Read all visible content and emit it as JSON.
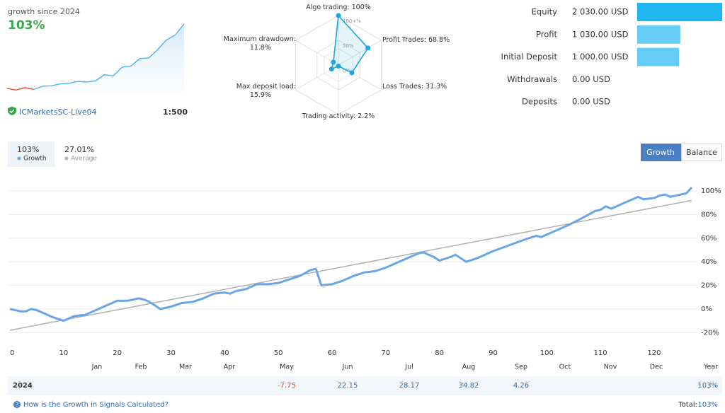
{
  "account": {
    "name": "ICMarketsSC-Live04",
    "leverage": "1:500"
  },
  "chart_data": [
    {
      "type": "sparkline",
      "title": "growth since 2024",
      "subtitle": "103%",
      "x": [
        0,
        1,
        2,
        3,
        4,
        5,
        6,
        7,
        8,
        9,
        10,
        11,
        12,
        13,
        14,
        15,
        16,
        17,
        18,
        19,
        20
      ],
      "ylim": [
        -10,
        110
      ],
      "series": [
        {
          "color": "#e0502a",
          "values": [
            -4,
            -7,
            -3,
            -6,
            null,
            null,
            null,
            null,
            null,
            null,
            null,
            null,
            null,
            null,
            null,
            null,
            null,
            null,
            null,
            null,
            null
          ]
        },
        {
          "color": "#4fb3e8",
          "values": [
            null,
            null,
            null,
            -6,
            -1,
            0,
            3,
            4,
            7,
            6,
            8,
            18,
            16,
            30,
            32,
            44,
            45,
            58,
            74,
            82,
            100
          ]
        }
      ]
    },
    {
      "type": "radar",
      "categories": [
        "Algo trading:",
        "Profit Trades:",
        "Loss Trades:",
        "Trading activity:",
        "Max deposit load:",
        "Maximum drawdown:"
      ],
      "values": [
        100,
        68.8,
        31.3,
        2.2,
        15.9,
        11.8
      ],
      "value_labels": [
        "100%",
        "68.8%",
        "31.3%",
        "2.2%",
        "15.9%",
        "11.8%"
      ],
      "rlim": [
        0,
        100
      ],
      "rticks": [
        {
          "value": 100,
          "label": "100+%"
        },
        {
          "value": 50,
          "label": "50%"
        },
        {
          "value": 0,
          "label": "0%"
        }
      ],
      "color": "#1aa7e0"
    },
    {
      "type": "hbar",
      "categories": [
        "Equity",
        "Profit",
        "Initial Deposit",
        "Withdrawals",
        "Deposits"
      ],
      "values": [
        2030,
        1030,
        1000,
        0,
        0
      ],
      "value_labels": [
        "2 030.00 USD",
        "1 030.00 USD",
        "1 000.00 USD",
        "0.00 USD",
        "0.00 USD"
      ],
      "xlim": [
        0,
        2030
      ],
      "colors": [
        "#1fb6f0",
        "#66ccf5",
        "#66ccf5",
        "#66ccf5",
        "#66ccf5"
      ]
    },
    {
      "type": "line",
      "xlim": [
        0,
        127
      ],
      "ylim": [
        -30,
        112
      ],
      "xticks": [
        0,
        10,
        20,
        30,
        40,
        50,
        60,
        70,
        80,
        90,
        100,
        110,
        120
      ],
      "yticks": [
        {
          "value": -20,
          "label": "-20%"
        },
        {
          "value": 0,
          "label": "0%"
        },
        {
          "value": 20,
          "label": "20%"
        },
        {
          "value": 40,
          "label": "40%"
        },
        {
          "value": 60,
          "label": "60%"
        },
        {
          "value": 80,
          "label": "80%"
        },
        {
          "value": 100,
          "label": "100%"
        }
      ],
      "grid": true,
      "series": [
        {
          "name": "Growth",
          "summary": "103%",
          "color": "#6aa5e6",
          "x": [
            0,
            2,
            3,
            4,
            5,
            6,
            7,
            8,
            10,
            12,
            14,
            16,
            18,
            20,
            22,
            24,
            25,
            26,
            28,
            30,
            32,
            34,
            36,
            38,
            40,
            41,
            42,
            44,
            46,
            48,
            50,
            52,
            54,
            56,
            57,
            58,
            60,
            62,
            64,
            66,
            68,
            70,
            72,
            74,
            76,
            77,
            79,
            80,
            82,
            83,
            85,
            87,
            90,
            93,
            96,
            98,
            99,
            101,
            104,
            107,
            109,
            110,
            111,
            112,
            114,
            116,
            117,
            118,
            120,
            121,
            122,
            123,
            124,
            126,
            127
          ],
          "values": [
            0,
            -2,
            -2,
            0,
            -1,
            -3,
            -5,
            -7,
            -10,
            -6,
            -5,
            -1,
            3,
            7,
            7,
            9,
            8,
            6,
            0,
            2,
            5,
            6,
            9,
            13,
            14,
            13,
            15,
            17,
            21,
            21,
            22,
            25,
            28,
            33,
            34,
            20,
            21,
            24,
            28,
            31,
            32,
            35,
            39,
            43,
            47,
            48,
            44,
            41,
            44,
            46,
            40,
            43,
            49,
            54,
            59,
            62,
            61,
            65,
            71,
            78,
            83,
            84,
            87,
            85,
            89,
            93,
            95,
            93,
            94,
            96,
            97,
            95,
            96,
            98,
            103
          ]
        },
        {
          "name": "Average",
          "summary": "27.01%",
          "color": "#b0b0b0",
          "x": [
            0,
            127
          ],
          "values": [
            -18,
            92
          ]
        }
      ]
    }
  ],
  "controls": {
    "buttons": [
      "Growth",
      "Balance"
    ]
  },
  "table": {
    "columns": [
      "Jan",
      "Feb",
      "Mar",
      "Apr",
      "May",
      "Jun",
      "Jul",
      "Aug",
      "Sep",
      "Oct",
      "Nov",
      "Dec",
      "Year"
    ],
    "rows": [
      {
        "label": "2024",
        "cells": [
          null,
          null,
          null,
          null,
          -7.75,
          22.15,
          28.17,
          34.82,
          4.26,
          null,
          null,
          null,
          "103%"
        ]
      }
    ]
  },
  "footer": {
    "link": "How is the Growth in Signals Calculated?",
    "total_label": "Total:",
    "total": "103%"
  }
}
